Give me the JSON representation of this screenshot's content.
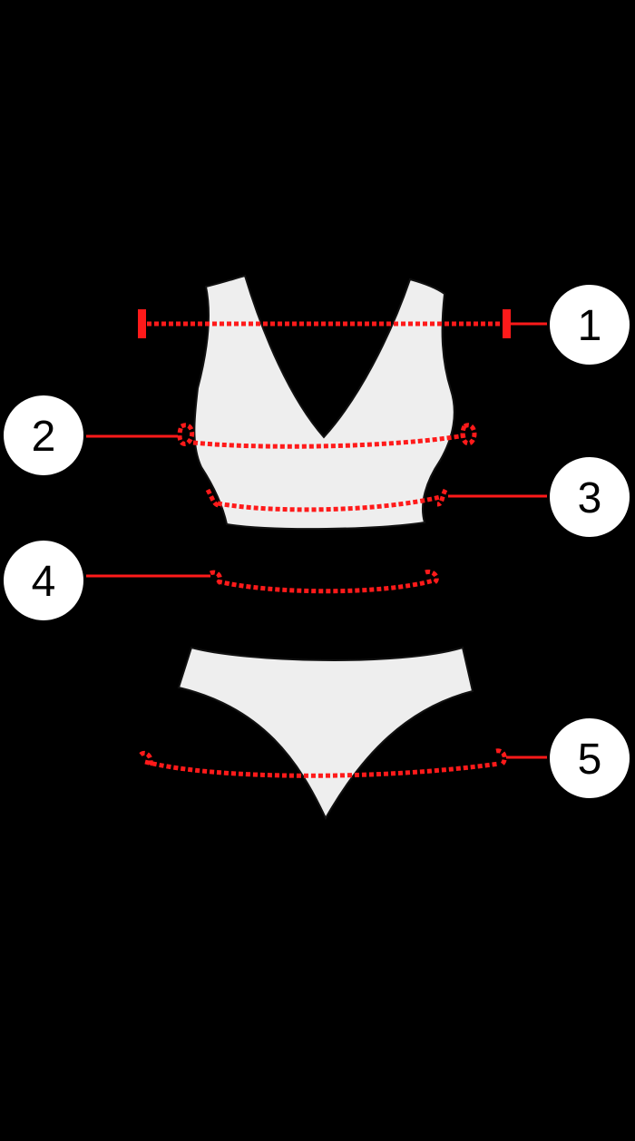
{
  "diagram": {
    "background_color": "#000000",
    "garment_fill": "#eeeeee",
    "garment_stroke": "#111111",
    "measure_color": "#ff1a1a",
    "badge_fill": "#ffffff",
    "badge_stroke": "#000000",
    "badge_text_color": "#000000",
    "garments": [
      "bra-top",
      "bikini-bottom"
    ],
    "markers": [
      {
        "id": "1",
        "label": "1"
      },
      {
        "id": "2",
        "label": "2"
      },
      {
        "id": "3",
        "label": "3"
      },
      {
        "id": "4",
        "label": "4"
      },
      {
        "id": "5",
        "label": "5"
      }
    ]
  }
}
